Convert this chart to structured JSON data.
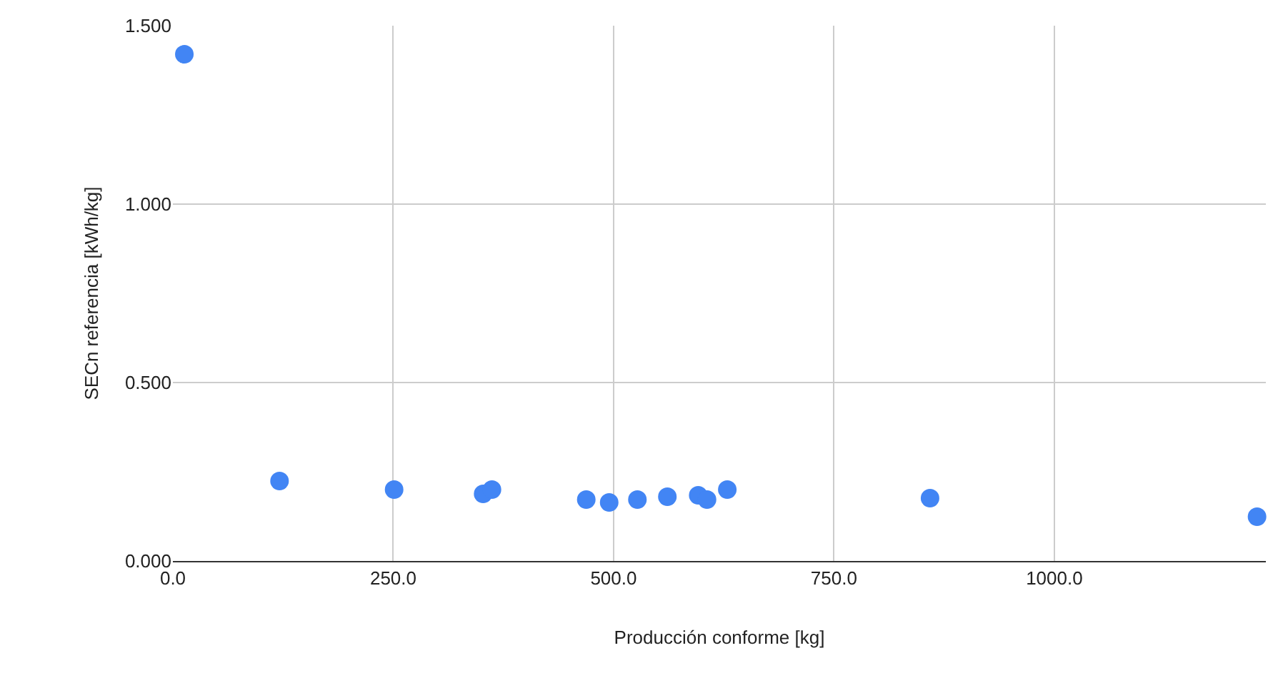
{
  "chart_data": {
    "type": "scatter",
    "xlabel": "Producción conforme [kg]",
    "ylabel": "SECn referencia [kWh/kg]",
    "x": [
      13,
      121,
      251,
      352,
      362,
      469,
      495,
      527,
      561,
      596,
      606,
      629,
      859,
      1230
    ],
    "series": [
      {
        "color": "#4285f4",
        "values": [
          1.42,
          0.224,
          0.2,
          0.188,
          0.2,
          0.172,
          0.164,
          0.172,
          0.18,
          0.184,
          0.172,
          0.2,
          0.176,
          0.124
        ]
      }
    ],
    "xlim": [
      0,
      1240
    ],
    "ylim": [
      0,
      1.5
    ],
    "xticks": [
      {
        "value": 0,
        "label": "0.0"
      },
      {
        "value": 250,
        "label": "250.0"
      },
      {
        "value": 500,
        "label": "500.0"
      },
      {
        "value": 750,
        "label": "750.0"
      },
      {
        "value": 1000,
        "label": "1000.0"
      }
    ],
    "yticks": [
      {
        "value": 0,
        "label": "0.000"
      },
      {
        "value": 0.5,
        "label": "0.500"
      },
      {
        "value": 1,
        "label": "1.000"
      },
      {
        "value": 1.5,
        "label": "1.500"
      }
    ],
    "grid": true,
    "marker": "circle",
    "legend": false
  }
}
